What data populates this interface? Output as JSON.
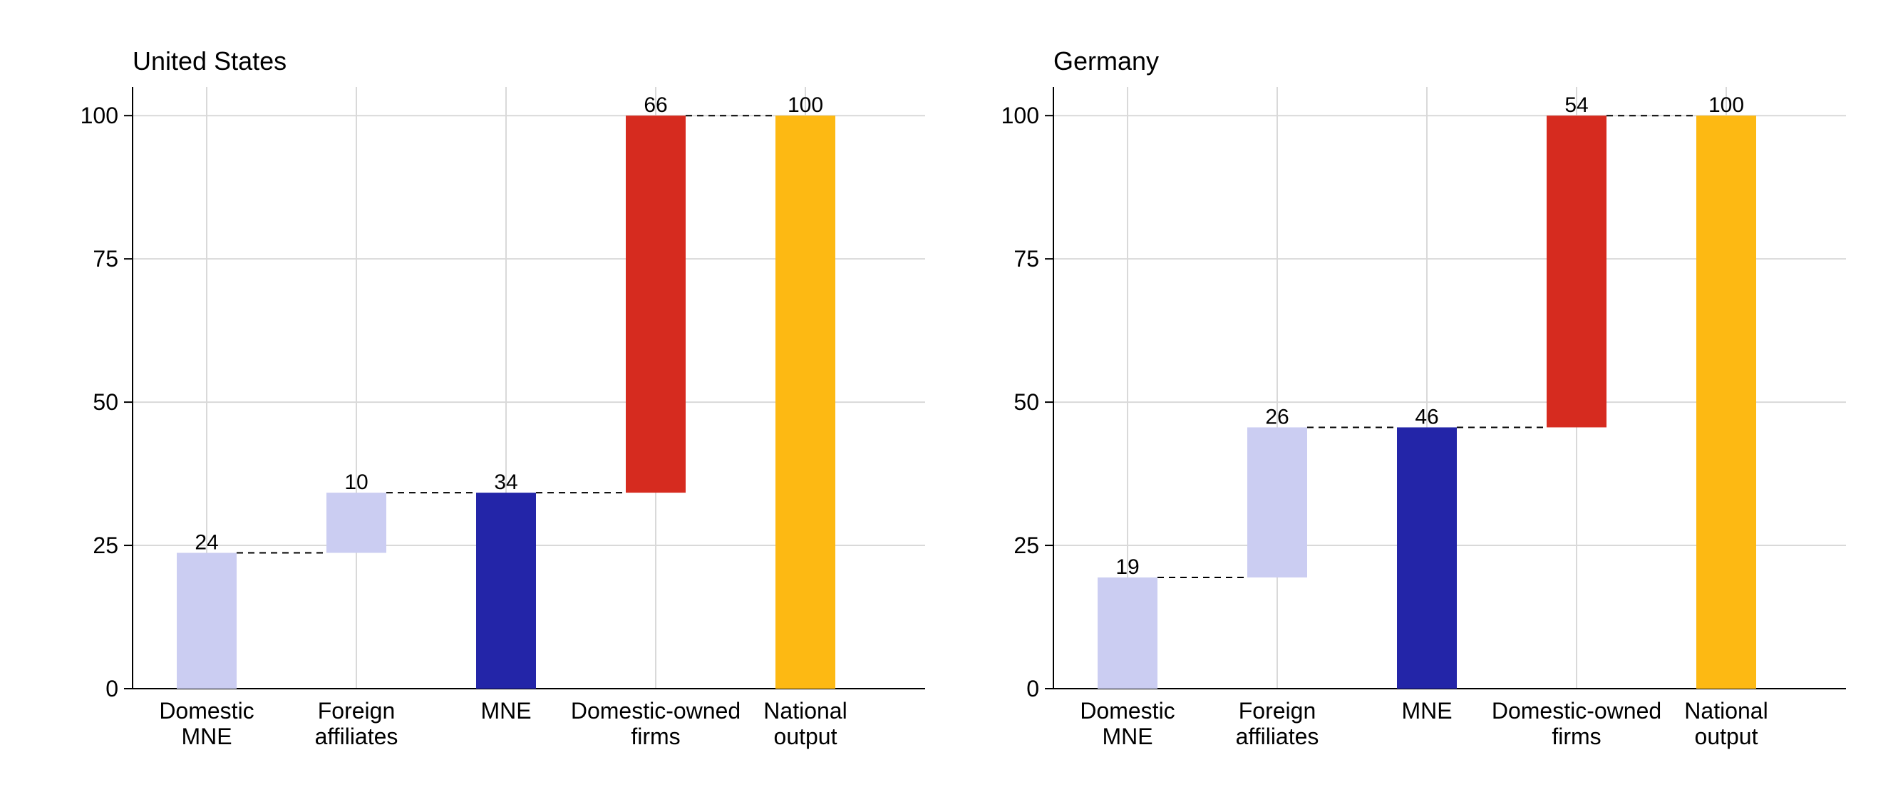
{
  "chart_data": [
    {
      "type": "bar",
      "subtype": "waterfall",
      "title": "United States",
      "xlabel": "",
      "ylabel": "",
      "ylim": [
        0,
        105
      ],
      "yticks": [
        0,
        25,
        50,
        75,
        100
      ],
      "ytick_labels": [
        "0",
        "25",
        "50",
        "75",
        "100"
      ],
      "grid": true,
      "categories": [
        [
          "Domestic",
          "MNE"
        ],
        [
          "Foreign",
          "affiliates"
        ],
        [
          "MNE"
        ],
        [
          "Domestic-owned",
          "firms"
        ],
        [
          "National",
          "output"
        ]
      ],
      "bars": [
        {
          "base": 0,
          "top": 23.7,
          "label": "24",
          "color": "#cbcdf2"
        },
        {
          "base": 23.7,
          "top": 34.2,
          "label": "10",
          "color": "#cbcdf2"
        },
        {
          "base": 0,
          "top": 34.2,
          "label": "34",
          "color": "#2325a8"
        },
        {
          "base": 34.2,
          "top": 100,
          "label": "66",
          "color": "#d62b1f"
        },
        {
          "base": 0,
          "top": 100,
          "label": "100",
          "color": "#fdb913"
        }
      ]
    },
    {
      "type": "bar",
      "subtype": "waterfall",
      "title": "Germany",
      "xlabel": "",
      "ylabel": "",
      "ylim": [
        0,
        105
      ],
      "yticks": [
        0,
        25,
        50,
        75,
        100
      ],
      "ytick_labels": [
        "0",
        "25",
        "50",
        "75",
        "100"
      ],
      "grid": true,
      "categories": [
        [
          "Domestic",
          "MNE"
        ],
        [
          "Foreign",
          "affiliates"
        ],
        [
          "MNE"
        ],
        [
          "Domestic-owned",
          "firms"
        ],
        [
          "National",
          "output"
        ]
      ],
      "bars": [
        {
          "base": 0,
          "top": 19.4,
          "label": "19",
          "color": "#cbcdf2"
        },
        {
          "base": 19.4,
          "top": 45.6,
          "label": "26",
          "color": "#cbcdf2"
        },
        {
          "base": 0,
          "top": 45.6,
          "label": "46",
          "color": "#2325a8"
        },
        {
          "base": 45.6,
          "top": 100,
          "label": "54",
          "color": "#d62b1f"
        },
        {
          "base": 0,
          "top": 100,
          "label": "100",
          "color": "#fdb913"
        }
      ]
    }
  ]
}
